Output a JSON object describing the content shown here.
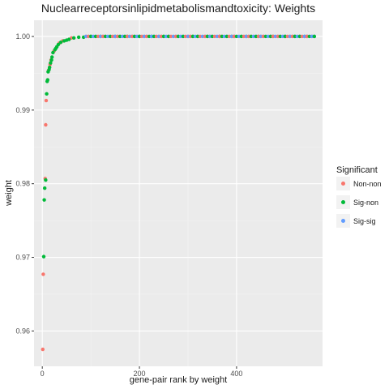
{
  "chart_data": {
    "type": "scatter",
    "title": "Nuclearreceptorsinlipidmetabolismandtoxicity: Weights",
    "xlabel": "gene-pair rank by weight",
    "ylabel": "weight",
    "xlim": [
      -17,
      577
    ],
    "ylim": [
      0.9552,
      1.0022
    ],
    "x_ticks": [
      0,
      200,
      400
    ],
    "x_tick_labels": [
      "0",
      "200",
      "400"
    ],
    "y_ticks": [
      0.96,
      0.97,
      0.98,
      0.99,
      1.0
    ],
    "y_tick_labels": [
      "0.96",
      "0.97",
      "0.98",
      "0.99",
      "1.00"
    ],
    "grid": true,
    "legend": {
      "title": "Significant",
      "position": "right",
      "entries": [
        {
          "label": "Non-non",
          "color": "#F8766D"
        },
        {
          "label": "Sig-non",
          "color": "#00BA38"
        },
        {
          "label": "Sig-sig",
          "color": "#619CFF"
        }
      ]
    },
    "series": [
      {
        "name": "Non-non",
        "color": "#F8766D",
        "x": [
          1,
          2,
          6,
          7,
          8,
          13,
          16,
          18,
          24,
          35,
          42,
          60,
          90,
          130,
          160,
          190,
          210,
          240,
          260,
          300,
          320,
          345,
          370,
          395,
          430,
          450,
          470,
          490,
          510,
          530,
          545,
          555
        ],
        "y": [
          0.9575,
          0.9677,
          0.9807,
          0.988,
          0.9913,
          0.9954,
          0.9962,
          0.9968,
          0.998,
          0.9991,
          0.9994,
          0.9998,
          1.0,
          1.0,
          1.0,
          1.0,
          1.0,
          1.0,
          1.0,
          1.0,
          1.0,
          1.0,
          1.0,
          1.0,
          1.0,
          1.0,
          1.0,
          1.0,
          1.0,
          1.0,
          1.0,
          1.0
        ]
      },
      {
        "name": "Sig-non",
        "color": "#00BA38",
        "x": [
          3,
          4,
          5,
          7,
          9,
          10,
          11,
          12,
          14,
          15,
          17,
          19,
          20,
          22,
          26,
          28,
          30,
          33,
          38,
          45,
          50,
          55,
          65,
          75,
          85,
          100,
          120,
          150,
          175,
          200,
          225,
          250,
          280,
          310,
          340,
          365,
          390,
          420,
          445,
          475,
          500,
          520,
          540,
          560
        ],
        "y": [
          0.9701,
          0.9778,
          0.9794,
          0.9805,
          0.9922,
          0.9939,
          0.9941,
          0.9952,
          0.9955,
          0.9958,
          0.9964,
          0.9968,
          0.9972,
          0.9978,
          0.9982,
          0.9984,
          0.9986,
          0.9989,
          0.9992,
          0.9994,
          0.9995,
          0.9996,
          0.9998,
          0.9999,
          0.9999,
          1.0,
          1.0,
          1.0,
          1.0,
          1.0,
          1.0,
          1.0,
          1.0,
          1.0,
          1.0,
          1.0,
          1.0,
          1.0,
          1.0,
          1.0,
          1.0,
          1.0,
          1.0,
          1.0
        ]
      },
      {
        "name": "Sig-sig",
        "color": "#619CFF",
        "x": [
          95,
          110,
          125,
          140,
          155,
          170,
          185,
          200,
          215,
          230,
          245,
          260,
          275,
          290,
          305,
          320,
          335,
          350,
          365,
          380,
          395,
          410,
          425,
          440,
          455,
          470,
          485,
          500,
          515,
          530,
          545,
          560
        ],
        "y": [
          1.0,
          1.0,
          1.0,
          1.0,
          1.0,
          1.0,
          1.0,
          1.0,
          1.0,
          1.0,
          1.0,
          1.0,
          1.0,
          1.0,
          1.0,
          1.0,
          1.0,
          1.0,
          1.0,
          1.0,
          1.0,
          1.0,
          1.0,
          1.0,
          1.0,
          1.0,
          1.0,
          1.0,
          1.0,
          1.0,
          1.0,
          1.0
        ]
      }
    ]
  }
}
